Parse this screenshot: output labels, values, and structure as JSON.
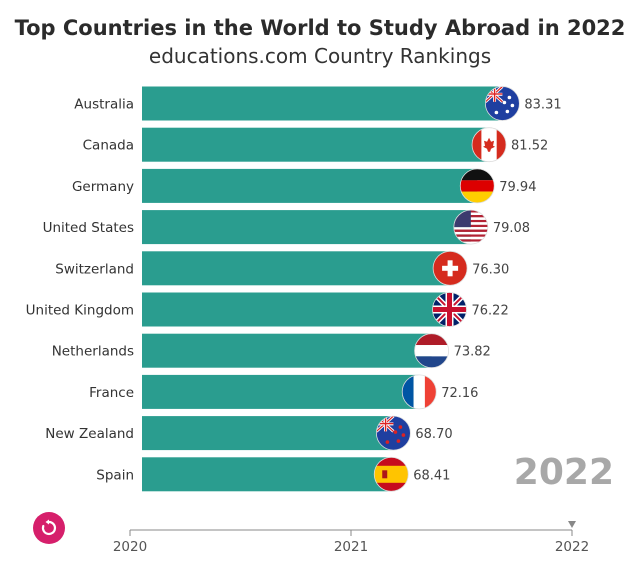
{
  "chart_data": {
    "type": "bar",
    "orientation": "horizontal",
    "title": "Top Countries in the World to Study Abroad in 2022",
    "subtitle": "educations.com Country Rankings",
    "categories": [
      "Australia",
      "Canada",
      "Germany",
      "United States",
      "Switzerland",
      "United Kingdom",
      "Netherlands",
      "France",
      "New Zealand",
      "Spain"
    ],
    "values": [
      83.31,
      81.52,
      79.94,
      79.08,
      76.3,
      76.22,
      73.82,
      72.16,
      68.7,
      68.41
    ],
    "value_labels": [
      "83.31",
      "81.52",
      "79.94",
      "79.08",
      "76.30",
      "76.22",
      "73.82",
      "72.16",
      "68.70",
      "68.41"
    ],
    "flags": [
      "australia-flag",
      "canada-flag",
      "germany-flag",
      "usa-flag",
      "switzerland-flag",
      "uk-flag",
      "netherlands-flag",
      "france-flag",
      "new-zealand-flag",
      "spain-flag"
    ],
    "bar_color": "#2a9d8f",
    "current_year": "2022",
    "timeline": {
      "ticks": [
        "2020",
        "2021",
        "2022"
      ],
      "position": "2022"
    }
  },
  "controls": {
    "replay_icon": "replay-icon"
  }
}
